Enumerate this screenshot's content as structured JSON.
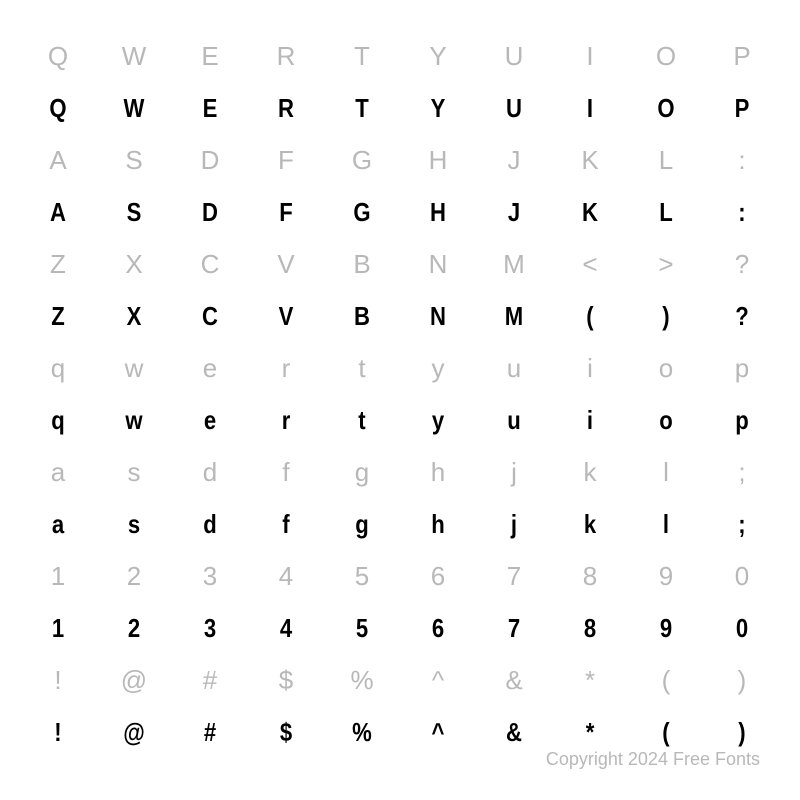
{
  "rows": [
    {
      "type": "label",
      "chars": [
        "Q",
        "W",
        "E",
        "R",
        "T",
        "Y",
        "U",
        "I",
        "O",
        "P"
      ]
    },
    {
      "type": "display",
      "chars": [
        "Q",
        "W",
        "E",
        "R",
        "T",
        "Y",
        "U",
        "I",
        "O",
        "P"
      ]
    },
    {
      "type": "label",
      "chars": [
        "A",
        "S",
        "D",
        "F",
        "G",
        "H",
        "J",
        "K",
        "L",
        ":"
      ]
    },
    {
      "type": "display",
      "chars": [
        "A",
        "S",
        "D",
        "F",
        "G",
        "H",
        "J",
        "K",
        "L",
        ":"
      ]
    },
    {
      "type": "label",
      "chars": [
        "Z",
        "X",
        "C",
        "V",
        "B",
        "N",
        "M",
        "<",
        ">",
        "?"
      ]
    },
    {
      "type": "display",
      "chars": [
        "Z",
        "X",
        "C",
        "V",
        "B",
        "N",
        "M",
        "(",
        ")",
        "?"
      ]
    },
    {
      "type": "label",
      "chars": [
        "q",
        "w",
        "e",
        "r",
        "t",
        "y",
        "u",
        "i",
        "o",
        "p"
      ]
    },
    {
      "type": "display",
      "chars": [
        "q",
        "w",
        "e",
        "r",
        "t",
        "y",
        "u",
        "i",
        "o",
        "p"
      ]
    },
    {
      "type": "label",
      "chars": [
        "a",
        "s",
        "d",
        "f",
        "g",
        "h",
        "j",
        "k",
        "l",
        ";"
      ]
    },
    {
      "type": "display",
      "chars": [
        "a",
        "s",
        "d",
        "f",
        "g",
        "h",
        "j",
        "k",
        "l",
        ";"
      ]
    },
    {
      "type": "label",
      "chars": [
        "1",
        "2",
        "3",
        "4",
        "5",
        "6",
        "7",
        "8",
        "9",
        "0"
      ]
    },
    {
      "type": "display",
      "chars": [
        "1",
        "2",
        "3",
        "4",
        "5",
        "6",
        "7",
        "8",
        "9",
        "0"
      ]
    },
    {
      "type": "label",
      "chars": [
        "!",
        "@",
        "#",
        "$",
        "%",
        "^",
        "&",
        "*",
        "(",
        ")"
      ]
    },
    {
      "type": "display",
      "chars": [
        "!",
        "@",
        "#",
        "$",
        "%",
        "^",
        "&",
        "*",
        "(",
        ")"
      ]
    }
  ],
  "copyright": "Copyright 2024 Free Fonts",
  "colors": {
    "label": "#b8b8b8",
    "display": "#000000",
    "background": "#ffffff"
  },
  "typography": {
    "label_fontsize": 26,
    "display_fontsize": 26,
    "copyright_fontsize": 18
  }
}
